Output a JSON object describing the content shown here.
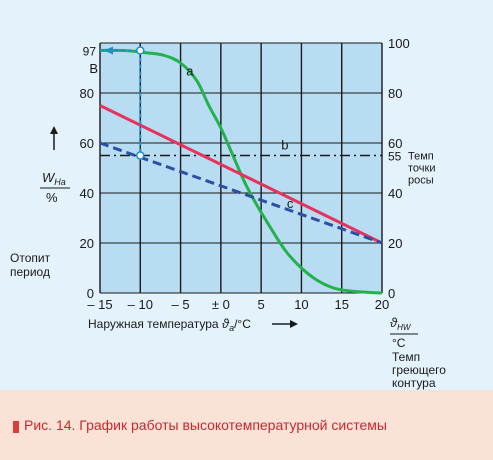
{
  "chart_data": {
    "type": "line",
    "x_axis": {
      "label_prefix": "Наружная температура",
      "label_symbol": "ϑ",
      "label_sub": "a",
      "label_unit": "/°C",
      "min": -15,
      "max": 20,
      "ticks": [
        -15,
        -10,
        -5,
        0,
        5,
        10,
        15,
        20
      ],
      "tick_labels": [
        "– 15",
        "– 10",
        "– 5",
        "± 0",
        "5",
        "10",
        "15",
        "20"
      ]
    },
    "y_left": {
      "label_main": "W",
      "label_sub": "На",
      "label_unit": "%",
      "min": 0,
      "max": 100,
      "ticks": [
        0,
        20,
        40,
        60,
        80
      ],
      "tick_labels": [
        "0",
        "20",
        "40",
        "60",
        "80"
      ]
    },
    "y_right": {
      "label_symbol": "ϑ",
      "label_sub": "HW",
      "label_unit": "°C",
      "desc_lines": [
        "Темп",
        "греющего",
        "контура"
      ],
      "ticks": [
        0,
        20,
        40,
        60,
        80,
        100
      ],
      "tick_labels": [
        "0",
        "20",
        "40",
        "60",
        "80",
        "100"
      ]
    },
    "left_caption_lines": [
      "Отопит",
      "период"
    ],
    "series": [
      {
        "name": "a",
        "color": "#22b14c",
        "style": "solid",
        "x": [
          -15,
          -12,
          -9,
          -7,
          -5,
          -3,
          -1.5,
          0,
          1.5,
          3,
          4.5,
          6,
          8,
          10,
          12,
          14,
          16,
          18,
          20
        ],
        "y": [
          97,
          97,
          96,
          95,
          92,
          85,
          75,
          66,
          55,
          44,
          35,
          27,
          17,
          10,
          5,
          2,
          0.8,
          0.3,
          0
        ]
      },
      {
        "name": "b",
        "color": "#1a1a1a",
        "style": "dash-dot",
        "x": [
          -15,
          20
        ],
        "y": [
          55,
          55
        ]
      },
      {
        "name": "c",
        "color": "#e8315b",
        "style": "solid",
        "x": [
          -15,
          20
        ],
        "y": [
          75,
          20
        ]
      },
      {
        "name": "dashed-blue",
        "color": "#2c4ea3",
        "style": "dashed",
        "x": [
          -15,
          20
        ],
        "y": [
          60,
          20
        ]
      }
    ],
    "annotations": {
      "left_value": "97",
      "left_letter": "B",
      "right_value": "55",
      "right_desc_lines": [
        "Темп",
        "точки",
        "росы"
      ],
      "highlight_x": -10,
      "highlight_y_top": 97,
      "highlight_y_bottom": 55
    },
    "grid": true
  },
  "caption": {
    "text": "Рис. 14. График работы высокотемпературной системы"
  },
  "colors": {
    "plot_bg": "#b8dcf2",
    "page_bg": "#e4f2fb",
    "caption_bg": "#fbe2d7",
    "caption_text": "#c8282e",
    "accent_blue": "#1b8fc6",
    "grid": "#1a1a1a"
  }
}
